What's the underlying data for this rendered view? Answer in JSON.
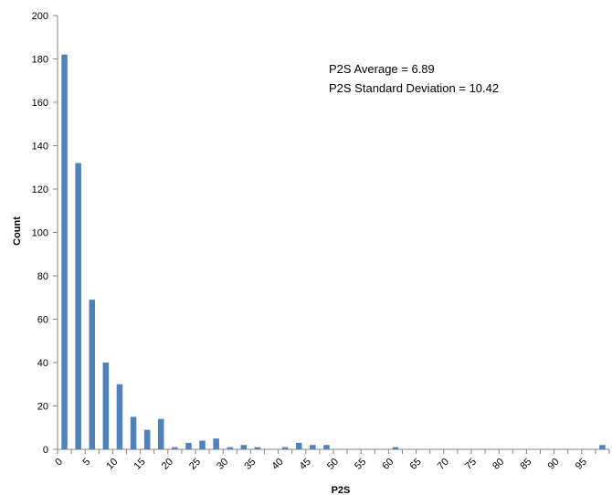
{
  "chart_data": {
    "type": "bar",
    "xlabel": "P2S",
    "ylabel": "Count",
    "ylim": [
      0,
      200
    ],
    "yticks": [
      0,
      20,
      40,
      60,
      80,
      100,
      120,
      140,
      160,
      180,
      200
    ],
    "xticks": [
      "0",
      "5",
      "10",
      "15",
      "20",
      "25",
      "30",
      "35",
      "40",
      "45",
      "50",
      "55",
      "60",
      "65",
      "70",
      "75",
      "80",
      "85",
      "90",
      "95"
    ],
    "xlim": [
      0,
      100
    ],
    "bar_color": "#4F81BD",
    "grid": false,
    "annotations": [
      "P2S Average = 6.89",
      "P2S Standard Deviation = 10.42"
    ],
    "bins": [
      2.5,
      5,
      7.5,
      10,
      12.5,
      15,
      17.5,
      20,
      22.5,
      25,
      27.5,
      30,
      32.5,
      35,
      37.5,
      40,
      42.5,
      45,
      47.5,
      50,
      62.5,
      100
    ],
    "values": [
      182,
      132,
      69,
      40,
      30,
      15,
      9,
      14,
      1,
      3,
      4,
      5,
      1,
      2,
      1,
      0,
      1,
      3,
      2,
      2,
      1,
      2
    ]
  }
}
